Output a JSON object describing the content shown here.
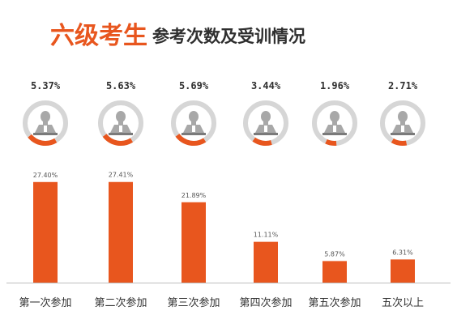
{
  "title": {
    "main": "六级考生",
    "sub": "参考次数及受训情况"
  },
  "colors": {
    "accent": "#e8561e",
    "ring_track": "#d6d6d6",
    "icon": "#a8a8a8",
    "baseline": "#bdbdbd"
  },
  "icon_name": "student-bust-icon",
  "chart_data": [
    {
      "type": "pie",
      "note_type": "donut-gauges",
      "series": [
        {
          "category": "第一次参加",
          "value": 5.37,
          "label": "5.37%"
        },
        {
          "category": "第二次参加",
          "value": 5.63,
          "label": "5.63%"
        },
        {
          "category": "第三次参加",
          "value": 5.69,
          "label": "5.69%"
        },
        {
          "category": "第四次参加",
          "value": 3.44,
          "label": "3.44%"
        },
        {
          "category": "第五次参加",
          "value": 1.96,
          "label": "1.96%"
        },
        {
          "category": "五次以上",
          "value": 2.71,
          "label": "2.71%"
        }
      ]
    },
    {
      "type": "bar",
      "categories": [
        "第一次参加",
        "第二次参加",
        "第三次参加",
        "第四次参加",
        "第五次参加",
        "五次以上"
      ],
      "values": [
        27.4,
        27.41,
        21.89,
        11.11,
        5.87,
        6.31
      ],
      "value_labels": [
        "27.40%",
        "27.41%",
        "21.89%",
        "11.11%",
        "5.87%",
        "6.31%"
      ],
      "ylim": [
        0,
        30
      ],
      "grid": false,
      "legend": "none"
    }
  ]
}
